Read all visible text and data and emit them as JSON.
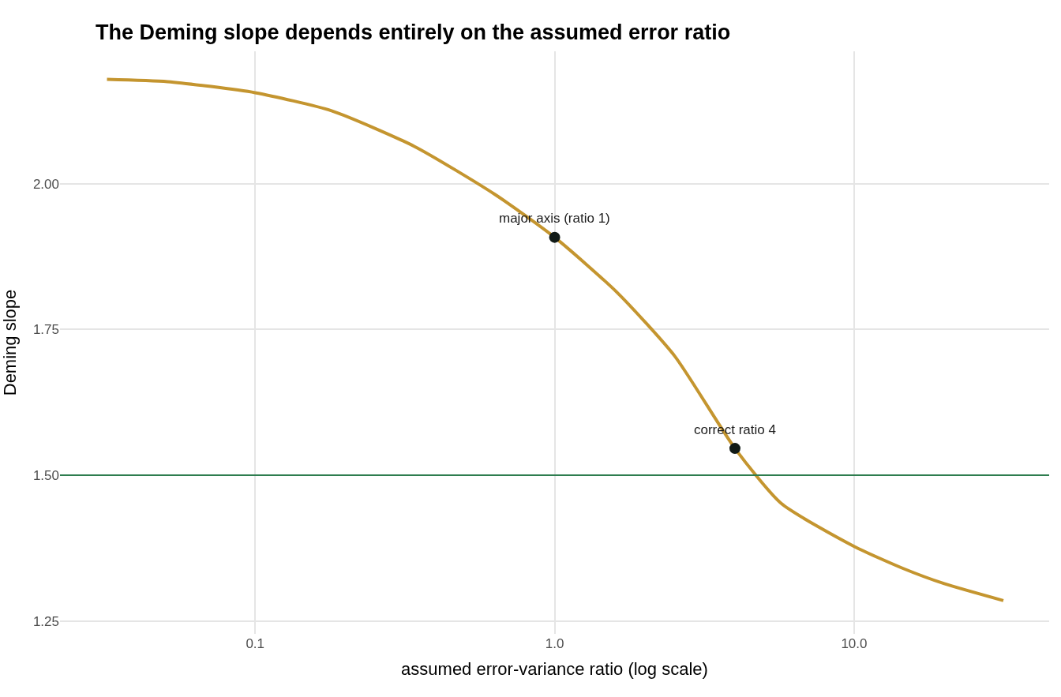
{
  "chart_data": {
    "type": "line",
    "title": "The Deming slope depends entirely on the assumed error ratio",
    "xlabel": "assumed error-variance ratio (log scale)",
    "ylabel": "Deming slope",
    "log": "x",
    "grid": true,
    "xlim": [
      0.0223,
      44.8
    ],
    "xticks": [
      0.1,
      {
        "value": 1,
        "label": "1.0"
      },
      {
        "value": 10,
        "label": "10.0"
      }
    ],
    "ylim": [
      1.228,
      2.227
    ],
    "yticks": [
      {
        "value": 1.25,
        "label": "1.25"
      },
      {
        "value": 1.5,
        "label": "1.50"
      },
      {
        "value": 1.75,
        "label": "1.75"
      },
      {
        "value": 2,
        "label": "2.00"
      }
    ],
    "series": [
      {
        "color": "#c4952f",
        "x": [
          0.032,
          0.051,
          0.1,
          0.18,
          0.34,
          0.63,
          1,
          1.62,
          2.52,
          4,
          5.7,
          10,
          14.6,
          20,
          31.5
        ],
        "values": [
          2.179,
          2.175,
          2.156,
          2.125,
          2.064,
          1.982,
          1.908,
          1.813,
          1.704,
          1.546,
          1.452,
          1.378,
          1.34,
          1.314,
          1.285
        ]
      },
      {
        "type": "scatter",
        "color": "#111a16",
        "marker": "circle",
        "x": [
          1,
          4
        ],
        "values": [
          1.908,
          1.546
        ]
      }
    ],
    "ref_lines": [
      {
        "axis": "y",
        "value": 1.5,
        "color": "#2e7d4f"
      }
    ],
    "annotations": [
      {
        "text": "major axis (ratio 1)",
        "x": 1,
        "y": 1.908
      },
      {
        "text": "correct ratio 4",
        "x": 4,
        "y": 1.546
      }
    ]
  }
}
